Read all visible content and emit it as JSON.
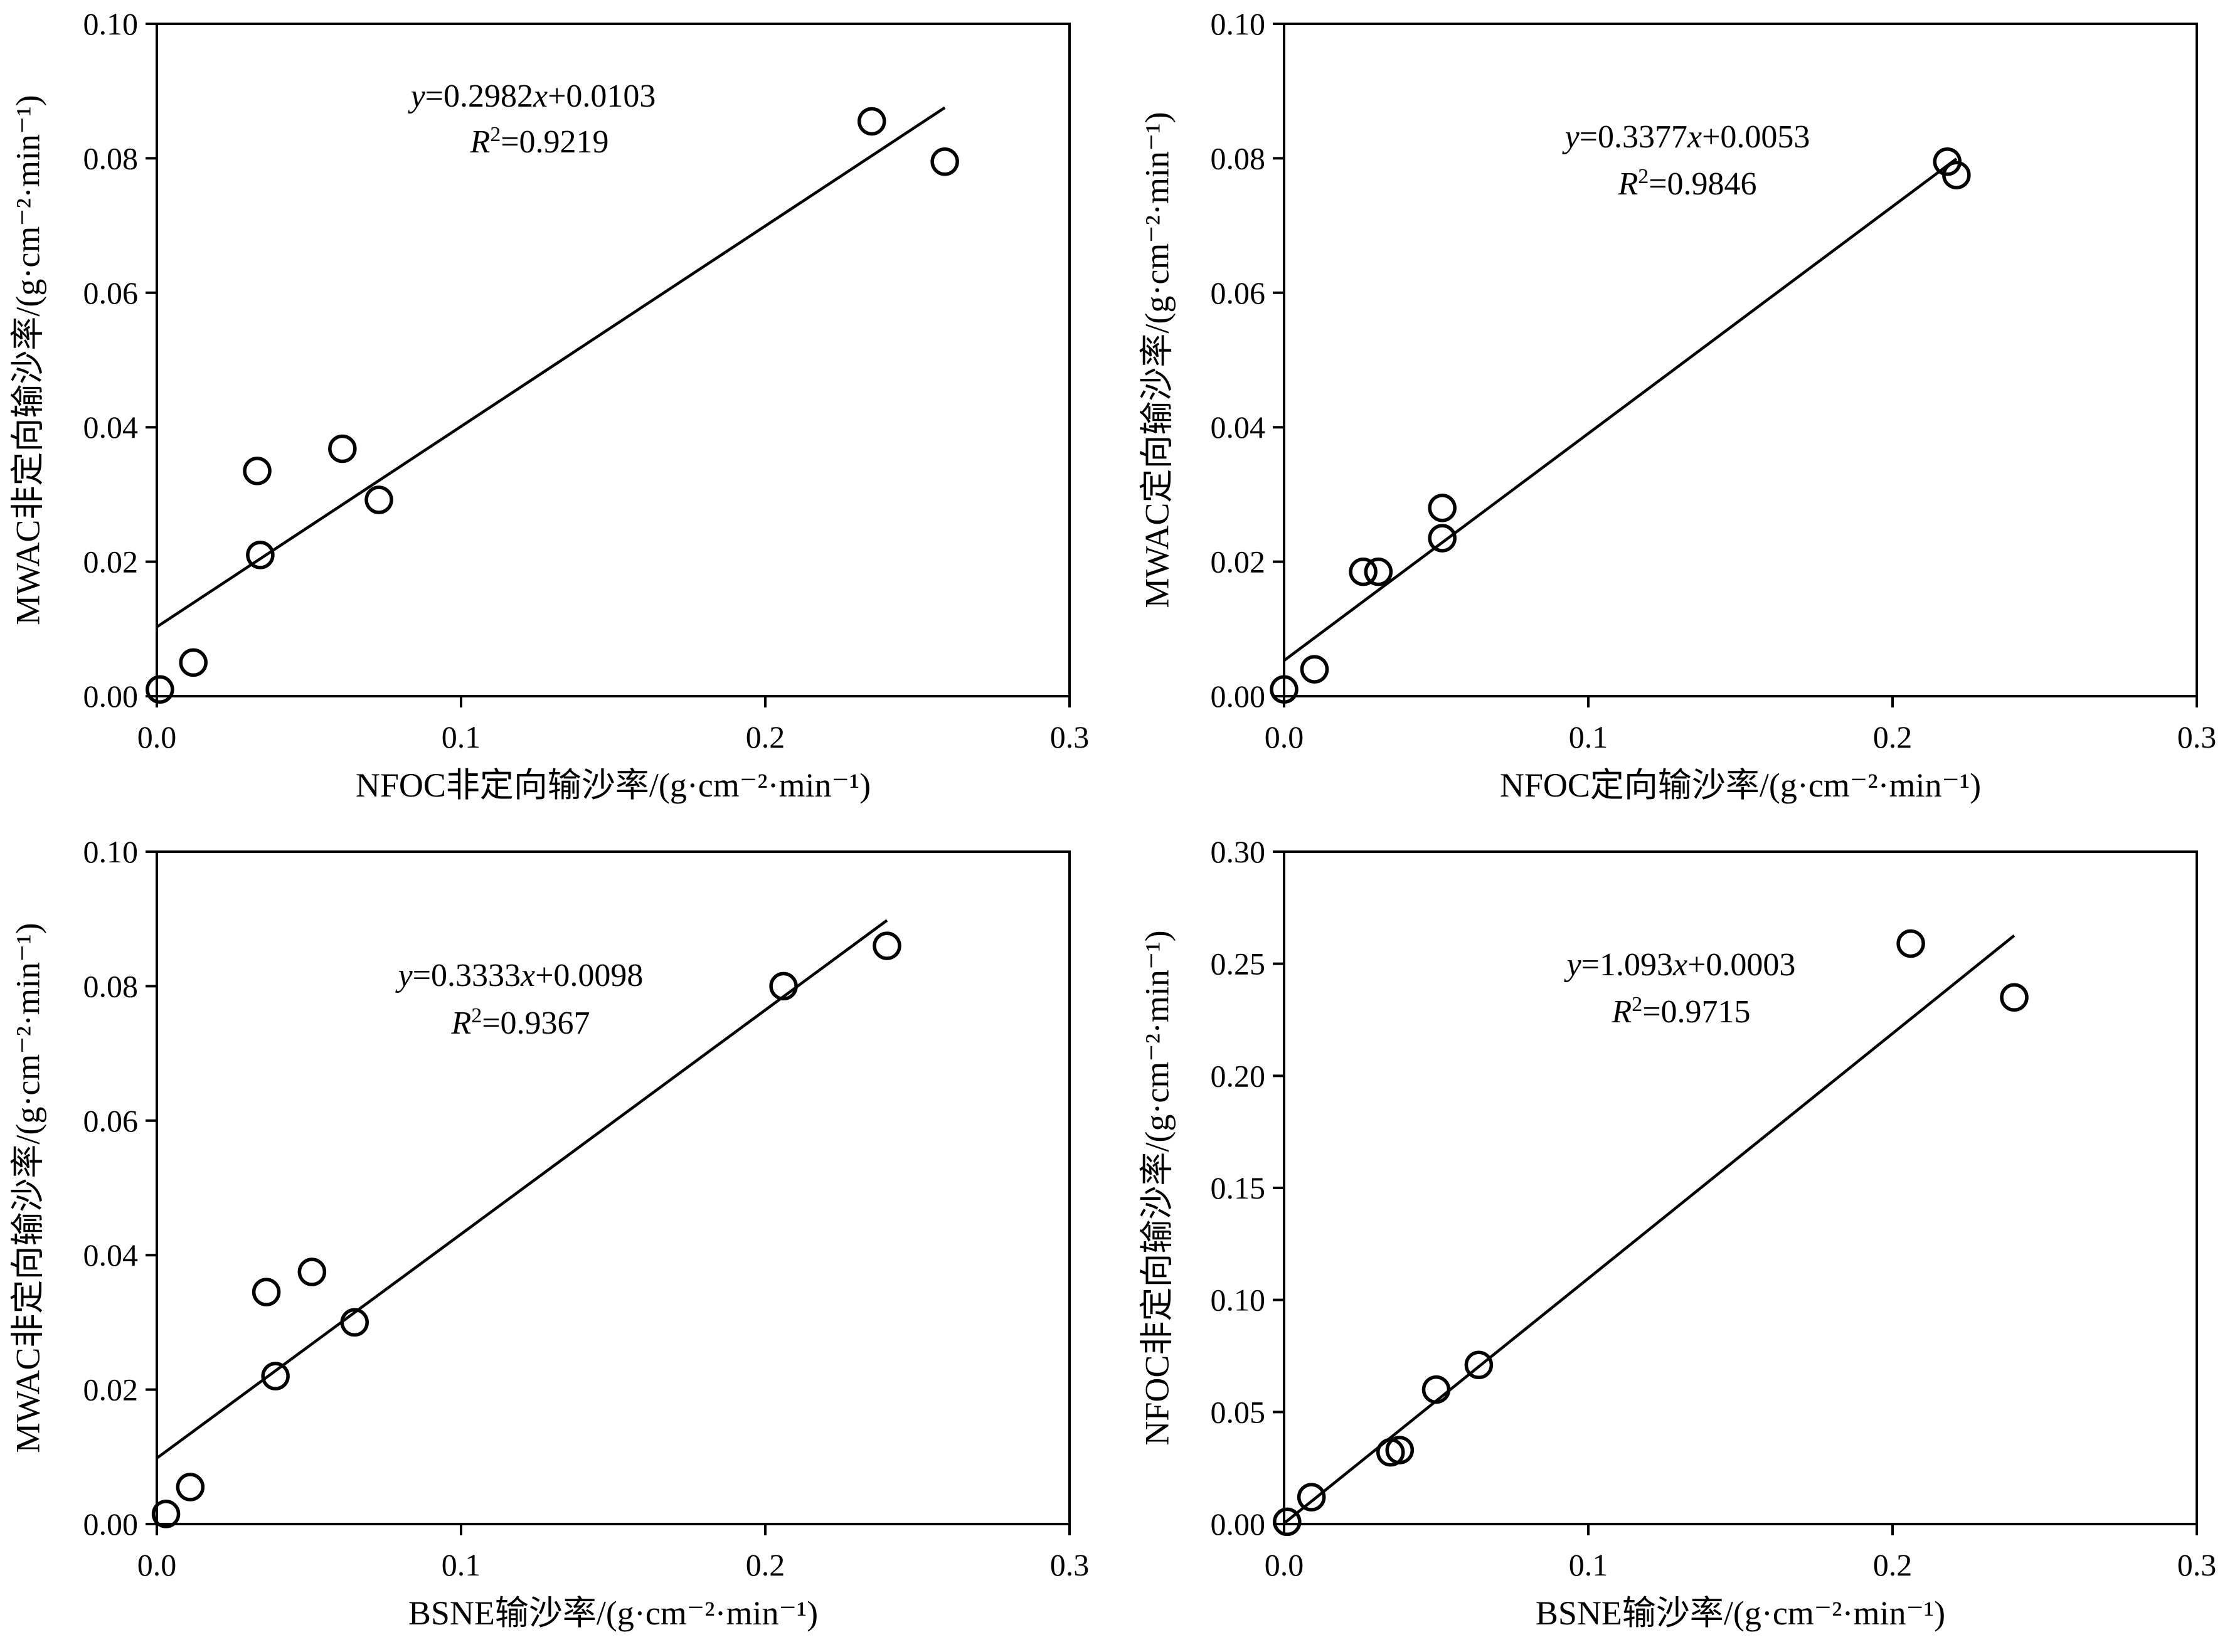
{
  "chart_data": [
    {
      "type": "scatter",
      "xlabel": "NFOC非定向输沙率/(g·cm⁻²·min⁻¹)",
      "ylabel": "MWAC非定向输沙率/(g·cm⁻²·min⁻¹)",
      "xlim": [
        0,
        0.3
      ],
      "ylim": [
        0,
        0.1
      ],
      "xticks": [
        "0.0",
        "0.1",
        "0.2",
        "0.3"
      ],
      "yticks": [
        "0.00",
        "0.02",
        "0.04",
        "0.06",
        "0.08",
        "0.10"
      ],
      "points": [
        [
          0.001,
          0.001
        ],
        [
          0.012,
          0.005
        ],
        [
          0.033,
          0.0335
        ],
        [
          0.034,
          0.021
        ],
        [
          0.061,
          0.0368
        ],
        [
          0.073,
          0.0292
        ],
        [
          0.235,
          0.0855
        ],
        [
          0.259,
          0.0795
        ]
      ],
      "fit": {
        "slope": 0.2982,
        "intercept": 0.0103,
        "x_range": [
          0,
          0.259
        ]
      },
      "equation": [
        "y",
        "=0.2982",
        "x",
        "+0.0103"
      ],
      "r2": [
        "R",
        "2",
        "=0.9219"
      ]
    },
    {
      "type": "scatter",
      "xlabel": "NFOC定向输沙率/(g·cm⁻²·min⁻¹)",
      "ylabel": "MWAC定向输沙率/(g·cm⁻²·min⁻¹)",
      "xlim": [
        0,
        0.3
      ],
      "ylim": [
        0,
        0.1
      ],
      "xticks": [
        "0.0",
        "0.1",
        "0.2",
        "0.3"
      ],
      "yticks": [
        "0.00",
        "0.02",
        "0.04",
        "0.06",
        "0.08",
        "0.10"
      ],
      "points": [
        [
          0.0,
          0.001
        ],
        [
          0.01,
          0.004
        ],
        [
          0.026,
          0.0185
        ],
        [
          0.031,
          0.0185
        ],
        [
          0.052,
          0.028
        ],
        [
          0.052,
          0.0235
        ],
        [
          0.218,
          0.0795
        ],
        [
          0.221,
          0.0775
        ]
      ],
      "fit": {
        "slope": 0.3377,
        "intercept": 0.0053,
        "x_range": [
          0,
          0.221
        ]
      },
      "equation": [
        "y",
        "=0.3377",
        "x",
        "+0.0053"
      ],
      "r2": [
        "R",
        "2",
        "=0.9846"
      ]
    },
    {
      "type": "scatter",
      "xlabel": "BSNE输沙率/(g·cm⁻²·min⁻¹)",
      "ylabel": "MWAC非定向输沙率/(g·cm⁻²·min⁻¹)",
      "xlim": [
        0,
        0.3
      ],
      "ylim": [
        0,
        0.1
      ],
      "xticks": [
        "0.0",
        "0.1",
        "0.2",
        "0.3"
      ],
      "yticks": [
        "0.00",
        "0.02",
        "0.04",
        "0.06",
        "0.08",
        "0.10"
      ],
      "points": [
        [
          0.003,
          0.0015
        ],
        [
          0.011,
          0.0055
        ],
        [
          0.036,
          0.0345
        ],
        [
          0.039,
          0.022
        ],
        [
          0.051,
          0.0375
        ],
        [
          0.065,
          0.03
        ],
        [
          0.206,
          0.08
        ],
        [
          0.24,
          0.086
        ]
      ],
      "fit": {
        "slope": 0.3333,
        "intercept": 0.0098,
        "x_range": [
          0,
          0.24
        ]
      },
      "equation": [
        "y",
        "=0.3333",
        "x",
        "+0.0098"
      ],
      "r2": [
        "R",
        "2",
        "=0.9367"
      ]
    },
    {
      "type": "scatter",
      "xlabel": "BSNE输沙率/(g·cm⁻²·min⁻¹)",
      "ylabel": "NFOC非定向输沙率/(g·cm⁻²·min⁻¹)",
      "xlim": [
        0,
        0.3
      ],
      "ylim": [
        0,
        0.3
      ],
      "xticks": [
        "0.0",
        "0.1",
        "0.2",
        "0.3"
      ],
      "yticks": [
        "0.00",
        "0.05",
        "0.10",
        "0.15",
        "0.20",
        "0.25",
        "0.30"
      ],
      "points": [
        [
          0.001,
          0.001
        ],
        [
          0.009,
          0.012
        ],
        [
          0.035,
          0.032
        ],
        [
          0.038,
          0.033
        ],
        [
          0.05,
          0.06
        ],
        [
          0.064,
          0.071
        ],
        [
          0.206,
          0.259
        ],
        [
          0.24,
          0.235
        ]
      ],
      "fit": {
        "slope": 1.093,
        "intercept": 0.0003,
        "x_range": [
          0,
          0.24
        ]
      },
      "equation": [
        "y",
        "=1.093",
        "x",
        "+0.0003"
      ],
      "r2": [
        "R",
        "2",
        "=0.9715"
      ]
    }
  ]
}
